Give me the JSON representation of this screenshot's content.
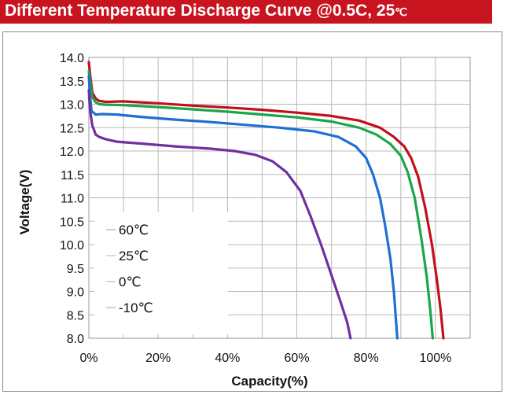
{
  "title": {
    "main": "Different Temperature Discharge Curve @0.5C, 25",
    "unit": "℃"
  },
  "chart_data": {
    "type": "line",
    "title": "Different Temperature Discharge Curve @0.5C, 25℃",
    "xlabel": "Capacity(%)",
    "ylabel": "Voltage(V)",
    "xlim": [
      0,
      110
    ],
    "ylim": [
      8.0,
      14.0
    ],
    "x_ticks": [
      "0%",
      "20%",
      "40%",
      "60%",
      "80%",
      "100%"
    ],
    "x_tick_values": [
      0,
      20,
      40,
      60,
      80,
      100
    ],
    "y_ticks": [
      "8.0",
      "8.5",
      "9.0",
      "9.5",
      "10.0",
      "10.5",
      "11.0",
      "11.5",
      "12.0",
      "12.5",
      "13.0",
      "13.5",
      "14.0"
    ],
    "y_tick_values": [
      8.0,
      8.5,
      9.0,
      9.5,
      10.0,
      10.5,
      11.0,
      11.5,
      12.0,
      12.5,
      13.0,
      13.5,
      14.0
    ],
    "grid": true,
    "legend_position": "bottom-left",
    "series": [
      {
        "name": "60℃",
        "color": "#c0101a",
        "points": [
          [
            0,
            13.9
          ],
          [
            0.4,
            13.6
          ],
          [
            1,
            13.25
          ],
          [
            2,
            13.12
          ],
          [
            3,
            13.07
          ],
          [
            5,
            13.05
          ],
          [
            10,
            13.06
          ],
          [
            20,
            13.02
          ],
          [
            30,
            12.97
          ],
          [
            40,
            12.93
          ],
          [
            50,
            12.88
          ],
          [
            60,
            12.82
          ],
          [
            70,
            12.75
          ],
          [
            78,
            12.65
          ],
          [
            84,
            12.5
          ],
          [
            88,
            12.3
          ],
          [
            91,
            12.1
          ],
          [
            93,
            11.85
          ],
          [
            95,
            11.45
          ],
          [
            97,
            10.8
          ],
          [
            99,
            10.0
          ],
          [
            100.5,
            9.2
          ],
          [
            101.5,
            8.6
          ],
          [
            102.3,
            8.0
          ]
        ]
      },
      {
        "name": "25℃",
        "color": "#1aa64a",
        "points": [
          [
            0,
            13.7
          ],
          [
            0.4,
            13.45
          ],
          [
            1,
            13.15
          ],
          [
            2,
            13.04
          ],
          [
            3,
            13.0
          ],
          [
            5,
            12.99
          ],
          [
            10,
            12.98
          ],
          [
            20,
            12.94
          ],
          [
            30,
            12.89
          ],
          [
            40,
            12.84
          ],
          [
            50,
            12.78
          ],
          [
            60,
            12.72
          ],
          [
            70,
            12.63
          ],
          [
            78,
            12.5
          ],
          [
            83,
            12.35
          ],
          [
            87,
            12.15
          ],
          [
            90,
            11.9
          ],
          [
            92,
            11.55
          ],
          [
            94,
            11.0
          ],
          [
            96,
            10.1
          ],
          [
            97.5,
            9.3
          ],
          [
            98.5,
            8.6
          ],
          [
            99.2,
            8.0
          ]
        ]
      },
      {
        "name": "0℃",
        "color": "#1e6fd2",
        "points": [
          [
            0,
            13.6
          ],
          [
            0.3,
            13.2
          ],
          [
            0.8,
            12.85
          ],
          [
            2,
            12.78
          ],
          [
            4,
            12.79
          ],
          [
            8,
            12.78
          ],
          [
            15,
            12.73
          ],
          [
            25,
            12.67
          ],
          [
            35,
            12.62
          ],
          [
            45,
            12.56
          ],
          [
            55,
            12.5
          ],
          [
            65,
            12.42
          ],
          [
            72,
            12.3
          ],
          [
            77,
            12.1
          ],
          [
            80,
            11.85
          ],
          [
            82,
            11.5
          ],
          [
            84,
            11.0
          ],
          [
            85.5,
            10.4
          ],
          [
            87,
            9.7
          ],
          [
            88,
            9.0
          ],
          [
            88.6,
            8.4
          ],
          [
            89,
            8.0
          ]
        ]
      },
      {
        "name": "-10℃",
        "color": "#7030a0",
        "points": [
          [
            0,
            13.3
          ],
          [
            0.3,
            12.9
          ],
          [
            1,
            12.55
          ],
          [
            2,
            12.35
          ],
          [
            3,
            12.3
          ],
          [
            5,
            12.25
          ],
          [
            8,
            12.2
          ],
          [
            15,
            12.16
          ],
          [
            25,
            12.1
          ],
          [
            35,
            12.05
          ],
          [
            42,
            12.0
          ],
          [
            48,
            11.92
          ],
          [
            53,
            11.78
          ],
          [
            57,
            11.55
          ],
          [
            61,
            11.15
          ],
          [
            64,
            10.6
          ],
          [
            67,
            10.0
          ],
          [
            70,
            9.35
          ],
          [
            72.5,
            8.8
          ],
          [
            74.5,
            8.35
          ],
          [
            75.5,
            8.0
          ]
        ]
      }
    ],
    "legend": [
      "60℃",
      "25℃",
      "0℃",
      "-10℃"
    ]
  }
}
